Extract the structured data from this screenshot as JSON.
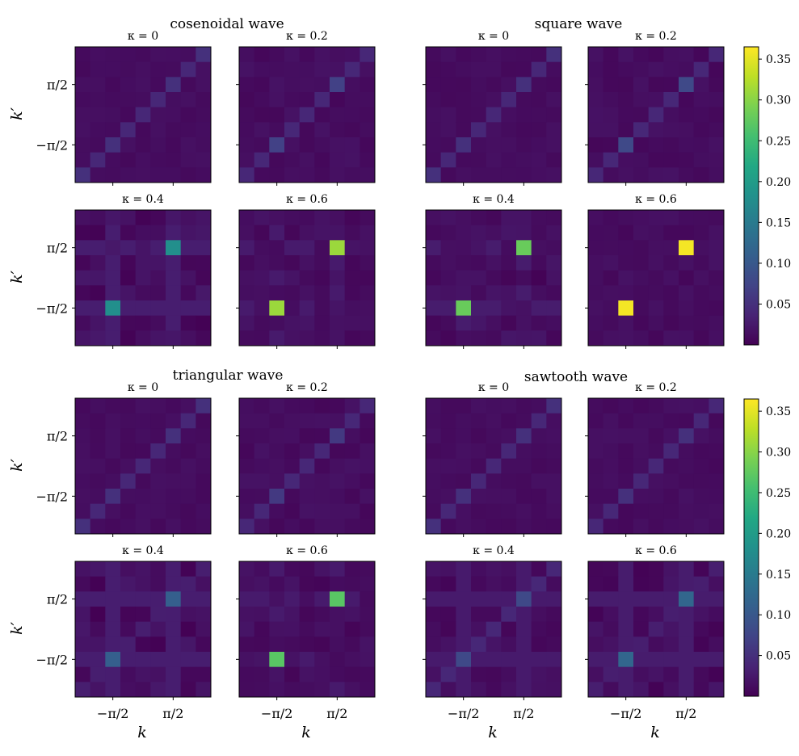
{
  "colormap": [
    "#440154",
    "#482475",
    "#414487",
    "#355f8d",
    "#2a788e",
    "#21918c",
    "#22a884",
    "#44bf70",
    "#7ad151",
    "#bddf26",
    "#fde725"
  ],
  "colorbar": {
    "vmin": 0.0,
    "vmax": 0.365,
    "ticks": [
      0.05,
      0.1,
      0.15,
      0.2,
      0.25,
      0.3,
      0.35
    ],
    "tick_labels": [
      "0.05",
      "0.10",
      "0.15",
      "0.20",
      "0.25",
      "0.30",
      "0.35"
    ]
  },
  "axes": {
    "xlabel": "k",
    "ylabel": "k′",
    "tick_labels": [
      "−π/2",
      "π/2"
    ]
  },
  "chart_data": {
    "type": "heatmap",
    "grid_size": 9,
    "description": "Each panel is a 9x9 heatmap over (k, k'); value = 0.01 background, diagonal d, corner points c, and two peaks p at (k=-π/2,k'=-π/2) and (k=π/2,k'=π/2).",
    "groups": [
      {
        "title": "cosenoidal wave",
        "panels": [
          {
            "label": "κ = 0",
            "diag": 0.04,
            "corner": 0.05,
            "peak": 0.05,
            "noise": 0.004
          },
          {
            "label": "κ = 0.2",
            "diag": 0.04,
            "corner": 0.04,
            "peak": 0.07,
            "noise": 0.006
          },
          {
            "label": "κ = 0.4",
            "diag": 0.02,
            "corner": 0.02,
            "peak": 0.18,
            "noise": 0.012
          },
          {
            "label": "κ = 0.6",
            "diag": 0.01,
            "corner": 0.01,
            "peak": 0.31,
            "noise": 0.008
          }
        ]
      },
      {
        "title": "square wave",
        "panels": [
          {
            "label": "κ = 0",
            "diag": 0.04,
            "corner": 0.05,
            "peak": 0.05,
            "noise": 0.004
          },
          {
            "label": "κ = 0.2",
            "diag": 0.04,
            "corner": 0.04,
            "peak": 0.08,
            "noise": 0.006
          },
          {
            "label": "κ = 0.4",
            "diag": 0.01,
            "corner": 0.01,
            "peak": 0.28,
            "noise": 0.01
          },
          {
            "label": "κ = 0.6",
            "diag": 0.01,
            "corner": 0.01,
            "peak": 0.36,
            "noise": 0.006
          }
        ]
      },
      {
        "title": "triangular wave",
        "panels": [
          {
            "label": "κ = 0",
            "diag": 0.04,
            "corner": 0.05,
            "peak": 0.05,
            "noise": 0.004
          },
          {
            "label": "κ = 0.2",
            "diag": 0.04,
            "corner": 0.04,
            "peak": 0.06,
            "noise": 0.006
          },
          {
            "label": "κ = 0.4",
            "diag": 0.03,
            "corner": 0.03,
            "peak": 0.11,
            "noise": 0.012
          },
          {
            "label": "κ = 0.6",
            "diag": 0.01,
            "corner": 0.01,
            "peak": 0.27,
            "noise": 0.008
          }
        ]
      },
      {
        "title": "sawtooth wave",
        "panels": [
          {
            "label": "κ = 0",
            "diag": 0.04,
            "corner": 0.05,
            "peak": 0.05,
            "noise": 0.004
          },
          {
            "label": "κ = 0.2",
            "diag": 0.04,
            "corner": 0.04,
            "peak": 0.05,
            "noise": 0.005
          },
          {
            "label": "κ = 0.4",
            "diag": 0.04,
            "corner": 0.04,
            "peak": 0.08,
            "noise": 0.008
          },
          {
            "label": "κ = 0.6",
            "diag": 0.03,
            "corner": 0.03,
            "peak": 0.12,
            "noise": 0.01
          }
        ]
      }
    ]
  }
}
